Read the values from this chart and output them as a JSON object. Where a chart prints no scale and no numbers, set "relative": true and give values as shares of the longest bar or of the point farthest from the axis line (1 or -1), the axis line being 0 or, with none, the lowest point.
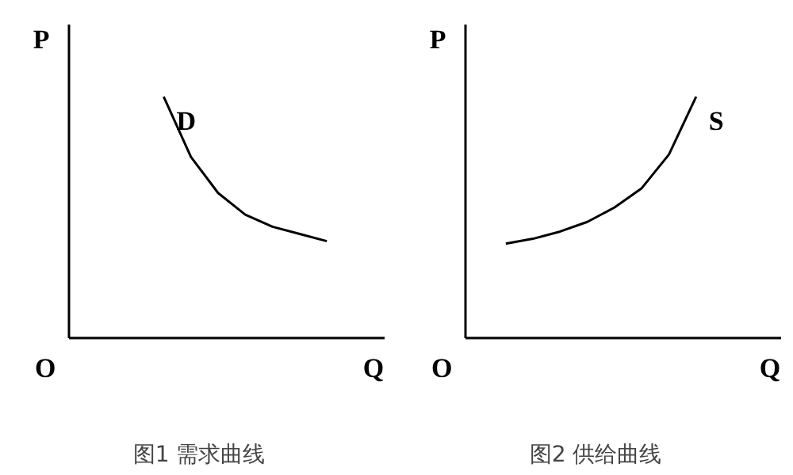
{
  "chart_data": [
    {
      "type": "line",
      "title": "图1 需求曲线",
      "xlabel": "Q",
      "ylabel": "P",
      "relative": true,
      "annotations": [
        "O"
      ],
      "categories": [
        null,
        null,
        null,
        null,
        null,
        null,
        null,
        null,
        null,
        null,
        null
      ],
      "series": [
        {
          "name": "D",
          "color": "#000000",
          "values": [
            null,
            null,
            null,
            1,
            0.75,
            0.6,
            0.51,
            0.46,
            0.43,
            0.4,
            null
          ]
        }
      ]
    },
    {
      "type": "line",
      "title": "图2 供给曲线",
      "xlabel": "Q",
      "ylabel": "P",
      "relative": true,
      "annotations": [
        "O"
      ],
      "categories": [
        null,
        null,
        null,
        null,
        null,
        null,
        null,
        null,
        null,
        null,
        null
      ],
      "series": [
        {
          "name": "S",
          "color": "#000000",
          "values": [
            null,
            0.39,
            0.41,
            0.44,
            0.48,
            0.54,
            0.62,
            0.76,
            1,
            null,
            null
          ]
        }
      ]
    }
  ]
}
